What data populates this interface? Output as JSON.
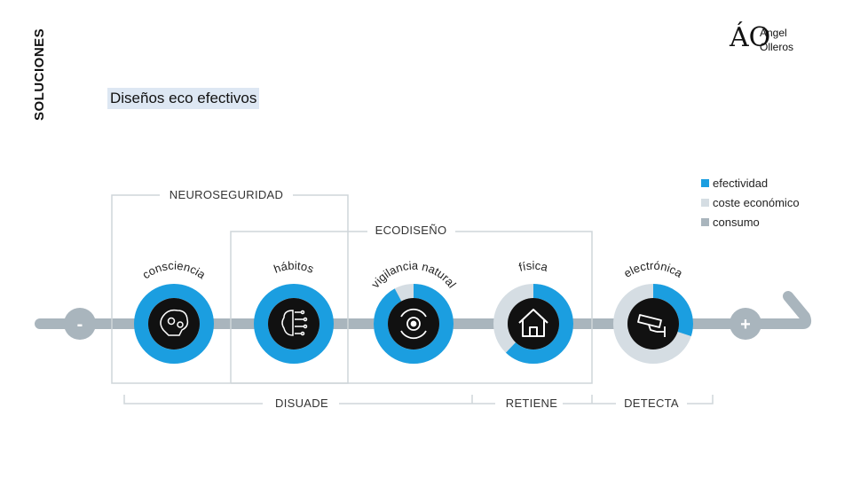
{
  "side_title": "SOLUCIONES",
  "subtitle": "Diseños eco efectivos",
  "logo": {
    "line1": "Ángel",
    "line2": "Olleros",
    "mark": "ÁO"
  },
  "colors": {
    "efectividad": "#1b9ee0",
    "coste": "#d5dde3",
    "consumo": "#a9b5bd",
    "frame": "#cfd6da"
  },
  "legend": [
    {
      "label": "efectividad",
      "color": "#1b9ee0"
    },
    {
      "label": "coste económico",
      "color": "#d5dde3"
    },
    {
      "label": "consumo",
      "color": "#a9b5bd"
    }
  ],
  "scale": {
    "minus": "-",
    "plus": "+"
  },
  "groups": {
    "top1": "NEUROSEGURIDAD",
    "top2": "ECODISEÑO"
  },
  "bottom": {
    "disuade": "DISUADE",
    "retiene": "RETIENE",
    "detecta": "DETECTA"
  },
  "solutions": [
    {
      "label": "consciencia",
      "icon": "brain-gears-icon",
      "efectividad": 1.0,
      "coste": 0.0
    },
    {
      "label": "hábitos",
      "icon": "brain-circuit-icon",
      "efectividad": 1.0,
      "coste": 0.0
    },
    {
      "label": "vigilancia natural",
      "icon": "eye-target-icon",
      "efectividad": 0.92,
      "coste": 0.08
    },
    {
      "label": "física",
      "icon": "house-icon",
      "efectividad": 0.62,
      "coste": 0.38
    },
    {
      "label": "electrónica",
      "icon": "security-camera-icon",
      "efectividad": 0.3,
      "coste": 0.7
    }
  ]
}
